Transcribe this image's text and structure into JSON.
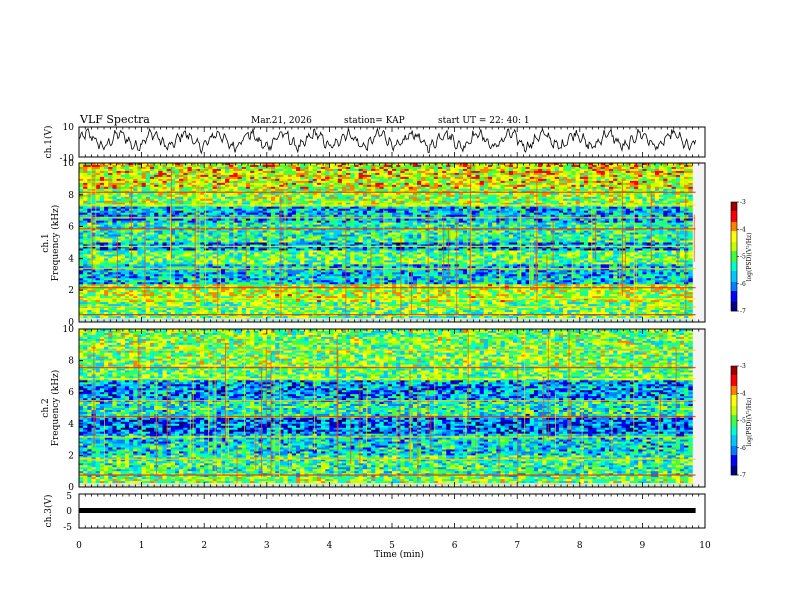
{
  "header": {
    "title": "VLF Spectra",
    "date": "Mar.21, 2026",
    "station": "station= KAP",
    "start": "start UT =  22: 40: 1"
  },
  "colors": {
    "colormap": [
      "#00007f",
      "#0000ff",
      "#0080ff",
      "#00c8ff",
      "#00ffc8",
      "#40ff40",
      "#c8ff00",
      "#ffff00",
      "#ff8000",
      "#ff0000",
      "#9f0000"
    ],
    "trace": "#000000",
    "axis": "#000000"
  },
  "chart_data": [
    {
      "type": "line",
      "name": "ch1 waveform",
      "ylabel": "ch.1(V)",
      "ylim": [
        -10,
        10
      ],
      "yticks": [
        "10",
        "-10"
      ],
      "xlim": [
        0,
        10
      ],
      "description_signal": "fluctuating waveform between about -7 and 9 V with ~0.5 min oscillation"
    },
    {
      "type": "heatmap",
      "name": "ch1 spectrogram",
      "ylabel": "Frequency (kHz)",
      "ylabel_channel": "ch.1",
      "ylim": [
        0,
        10
      ],
      "yticks": [
        "0",
        "2",
        "4",
        "6",
        "8",
        "10"
      ],
      "xlim": [
        0,
        10
      ],
      "colorbar": {
        "label": "log(PSD)(V²/Hz)",
        "range": [
          -7,
          -3
        ],
        "ticks": [
          "-3",
          "-4",
          "-5",
          "-6",
          "-7"
        ]
      },
      "bands": [
        {
          "f_low": 0.2,
          "f_high": 1.2,
          "log_psd": -5.0
        },
        {
          "f_low": 1.2,
          "f_high": 2.4,
          "log_psd": -4.6
        },
        {
          "f_low": 2.4,
          "f_high": 3.6,
          "log_psd": -5.7
        },
        {
          "f_low": 3.6,
          "f_high": 4.5,
          "log_psd": -5.0
        },
        {
          "f_low": 4.5,
          "f_high": 5.0,
          "log_psd": -6.0
        },
        {
          "f_low": 5.0,
          "f_high": 6.3,
          "log_psd": -5.3
        },
        {
          "f_low": 6.3,
          "f_high": 7.3,
          "log_psd": -5.8
        },
        {
          "f_low": 7.3,
          "f_high": 8.4,
          "log_psd": -4.8
        },
        {
          "f_low": 8.4,
          "f_high": 10.0,
          "log_psd": -4.4
        }
      ],
      "lines_khz": [
        0.5,
        1.0,
        1.5,
        2.2,
        3.4,
        4.8,
        5.9,
        6.6,
        7.4,
        8.2
      ]
    },
    {
      "type": "heatmap",
      "name": "ch2 spectrogram",
      "ylabel": "Frequency (kHz)",
      "ylabel_channel": "ch.2",
      "ylim": [
        0,
        10
      ],
      "yticks": [
        "0",
        "2",
        "4",
        "6",
        "8",
        "10"
      ],
      "xlim": [
        0,
        10
      ],
      "colorbar": {
        "label": "log(PSD)(V²/Hz)",
        "range": [
          -7,
          -3
        ],
        "ticks": [
          "-3",
          "-4",
          "-5",
          "-6",
          "-7"
        ]
      },
      "bands": [
        {
          "f_low": 0.0,
          "f_high": 0.6,
          "log_psd": -4.8
        },
        {
          "f_low": 0.6,
          "f_high": 2.0,
          "log_psd": -5.2
        },
        {
          "f_low": 2.0,
          "f_high": 3.4,
          "log_psd": -5.6
        },
        {
          "f_low": 3.4,
          "f_high": 4.4,
          "log_psd": -6.1
        },
        {
          "f_low": 4.4,
          "f_high": 5.4,
          "log_psd": -5.4
        },
        {
          "f_low": 5.4,
          "f_high": 6.8,
          "log_psd": -5.9
        },
        {
          "f_low": 6.8,
          "f_high": 7.6,
          "log_psd": -5.0
        },
        {
          "f_low": 7.6,
          "f_high": 10.0,
          "log_psd": -4.9
        }
      ],
      "lines_khz": [
        0.8,
        1.8,
        3.2,
        4.5,
        5.5,
        6.9,
        7.6,
        8.7
      ]
    },
    {
      "type": "line",
      "name": "ch3 signal",
      "ylabel": "ch.3(V)",
      "ylim": [
        -5,
        5
      ],
      "yticks": [
        "5",
        "0",
        "-5"
      ],
      "xlim": [
        0,
        10
      ],
      "value": 0,
      "x_end": 9.85
    }
  ],
  "xaxis": {
    "label": "Time (min)",
    "ticks": [
      "0",
      "1",
      "2",
      "3",
      "4",
      "5",
      "6",
      "7",
      "8",
      "9",
      "10"
    ]
  }
}
